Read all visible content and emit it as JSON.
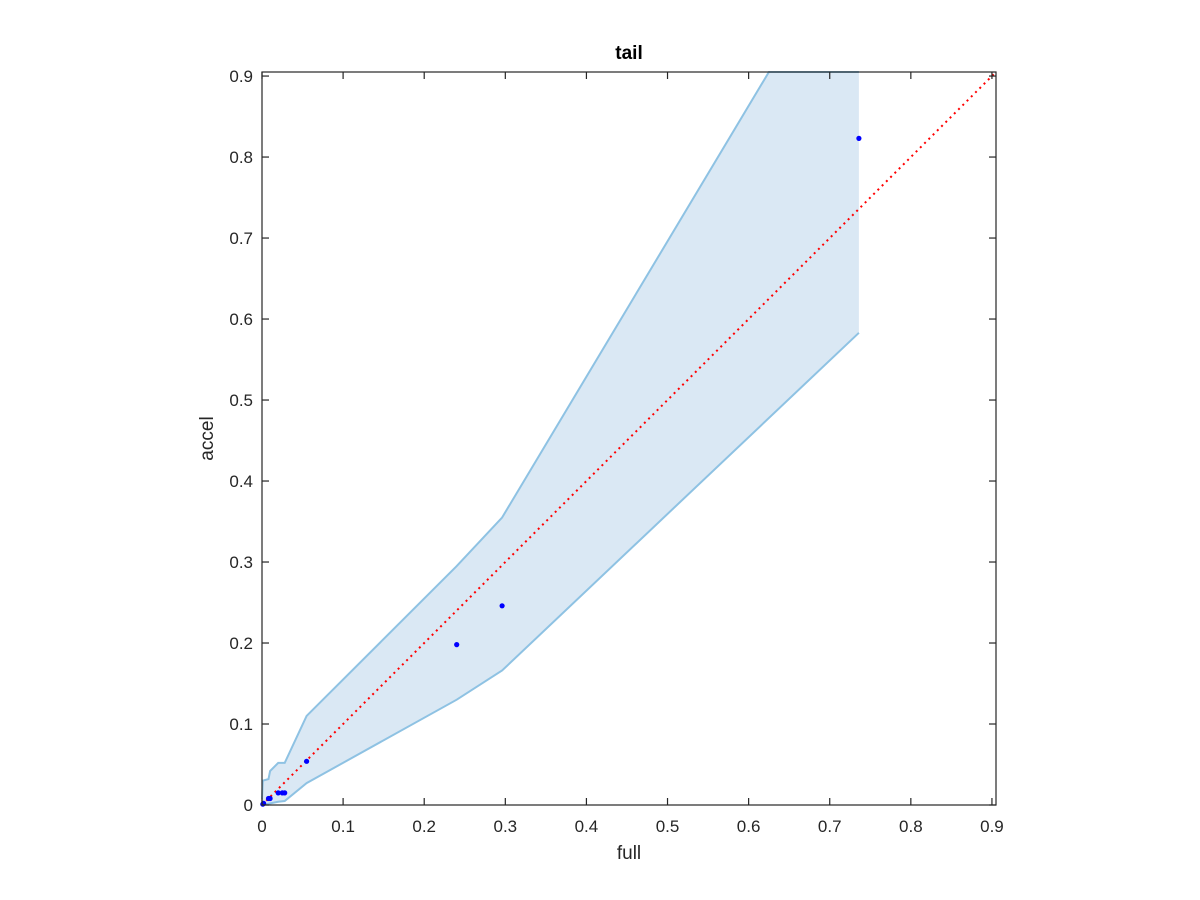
{
  "chart_data": {
    "type": "scatter",
    "title": "tail",
    "xlabel": "full",
    "ylabel": "accel",
    "xlim": [
      0,
      0.905
    ],
    "ylim": [
      0,
      0.905
    ],
    "xticks": [
      0,
      0.1,
      0.2,
      0.3,
      0.4,
      0.5,
      0.6,
      0.7,
      0.8,
      0.9
    ],
    "yticks": [
      0,
      0.1,
      0.2,
      0.3,
      0.4,
      0.5,
      0.6,
      0.7,
      0.8,
      0.9
    ],
    "xtick_labels": [
      "0",
      "0.1",
      "0.2",
      "0.3",
      "0.4",
      "0.5",
      "0.6",
      "0.7",
      "0.8",
      "0.9"
    ],
    "ytick_labels": [
      "0",
      "0.1",
      "0.2",
      "0.3",
      "0.4",
      "0.5",
      "0.6",
      "0.7",
      "0.8",
      "0.9"
    ],
    "grid": false,
    "points": {
      "color": "#0000ff",
      "x": [
        0.001,
        0.002,
        0.008,
        0.01,
        0.02,
        0.025,
        0.028,
        0.055,
        0.24,
        0.296,
        0.736
      ],
      "y": [
        0.001,
        0.002,
        0.008,
        0.008,
        0.015,
        0.015,
        0.015,
        0.054,
        0.198,
        0.246,
        0.823
      ]
    },
    "band": {
      "fill": "#dae8f4",
      "stroke": "#8ec2e3",
      "upper": {
        "x": [
          0,
          0.001,
          0.008,
          0.01,
          0.02,
          0.028,
          0.055,
          0.24,
          0.296,
          0.625,
          0.736
        ],
        "y": [
          0.008,
          0.03,
          0.032,
          0.042,
          0.052,
          0.052,
          0.11,
          0.295,
          0.355,
          0.905,
          0.905
        ]
      },
      "lower": {
        "x": [
          0.736,
          0.296,
          0.24,
          0.055,
          0.028,
          0.02,
          0.01,
          0.001,
          0
        ],
        "y": [
          0.583,
          0.166,
          0.13,
          0.027,
          0.005,
          0.004,
          0.002,
          0.0,
          0.0
        ]
      }
    },
    "reference_line": {
      "style": "dotted",
      "color": "#ff0000",
      "x": [
        0,
        0.905
      ],
      "y": [
        0,
        0.905
      ]
    }
  }
}
